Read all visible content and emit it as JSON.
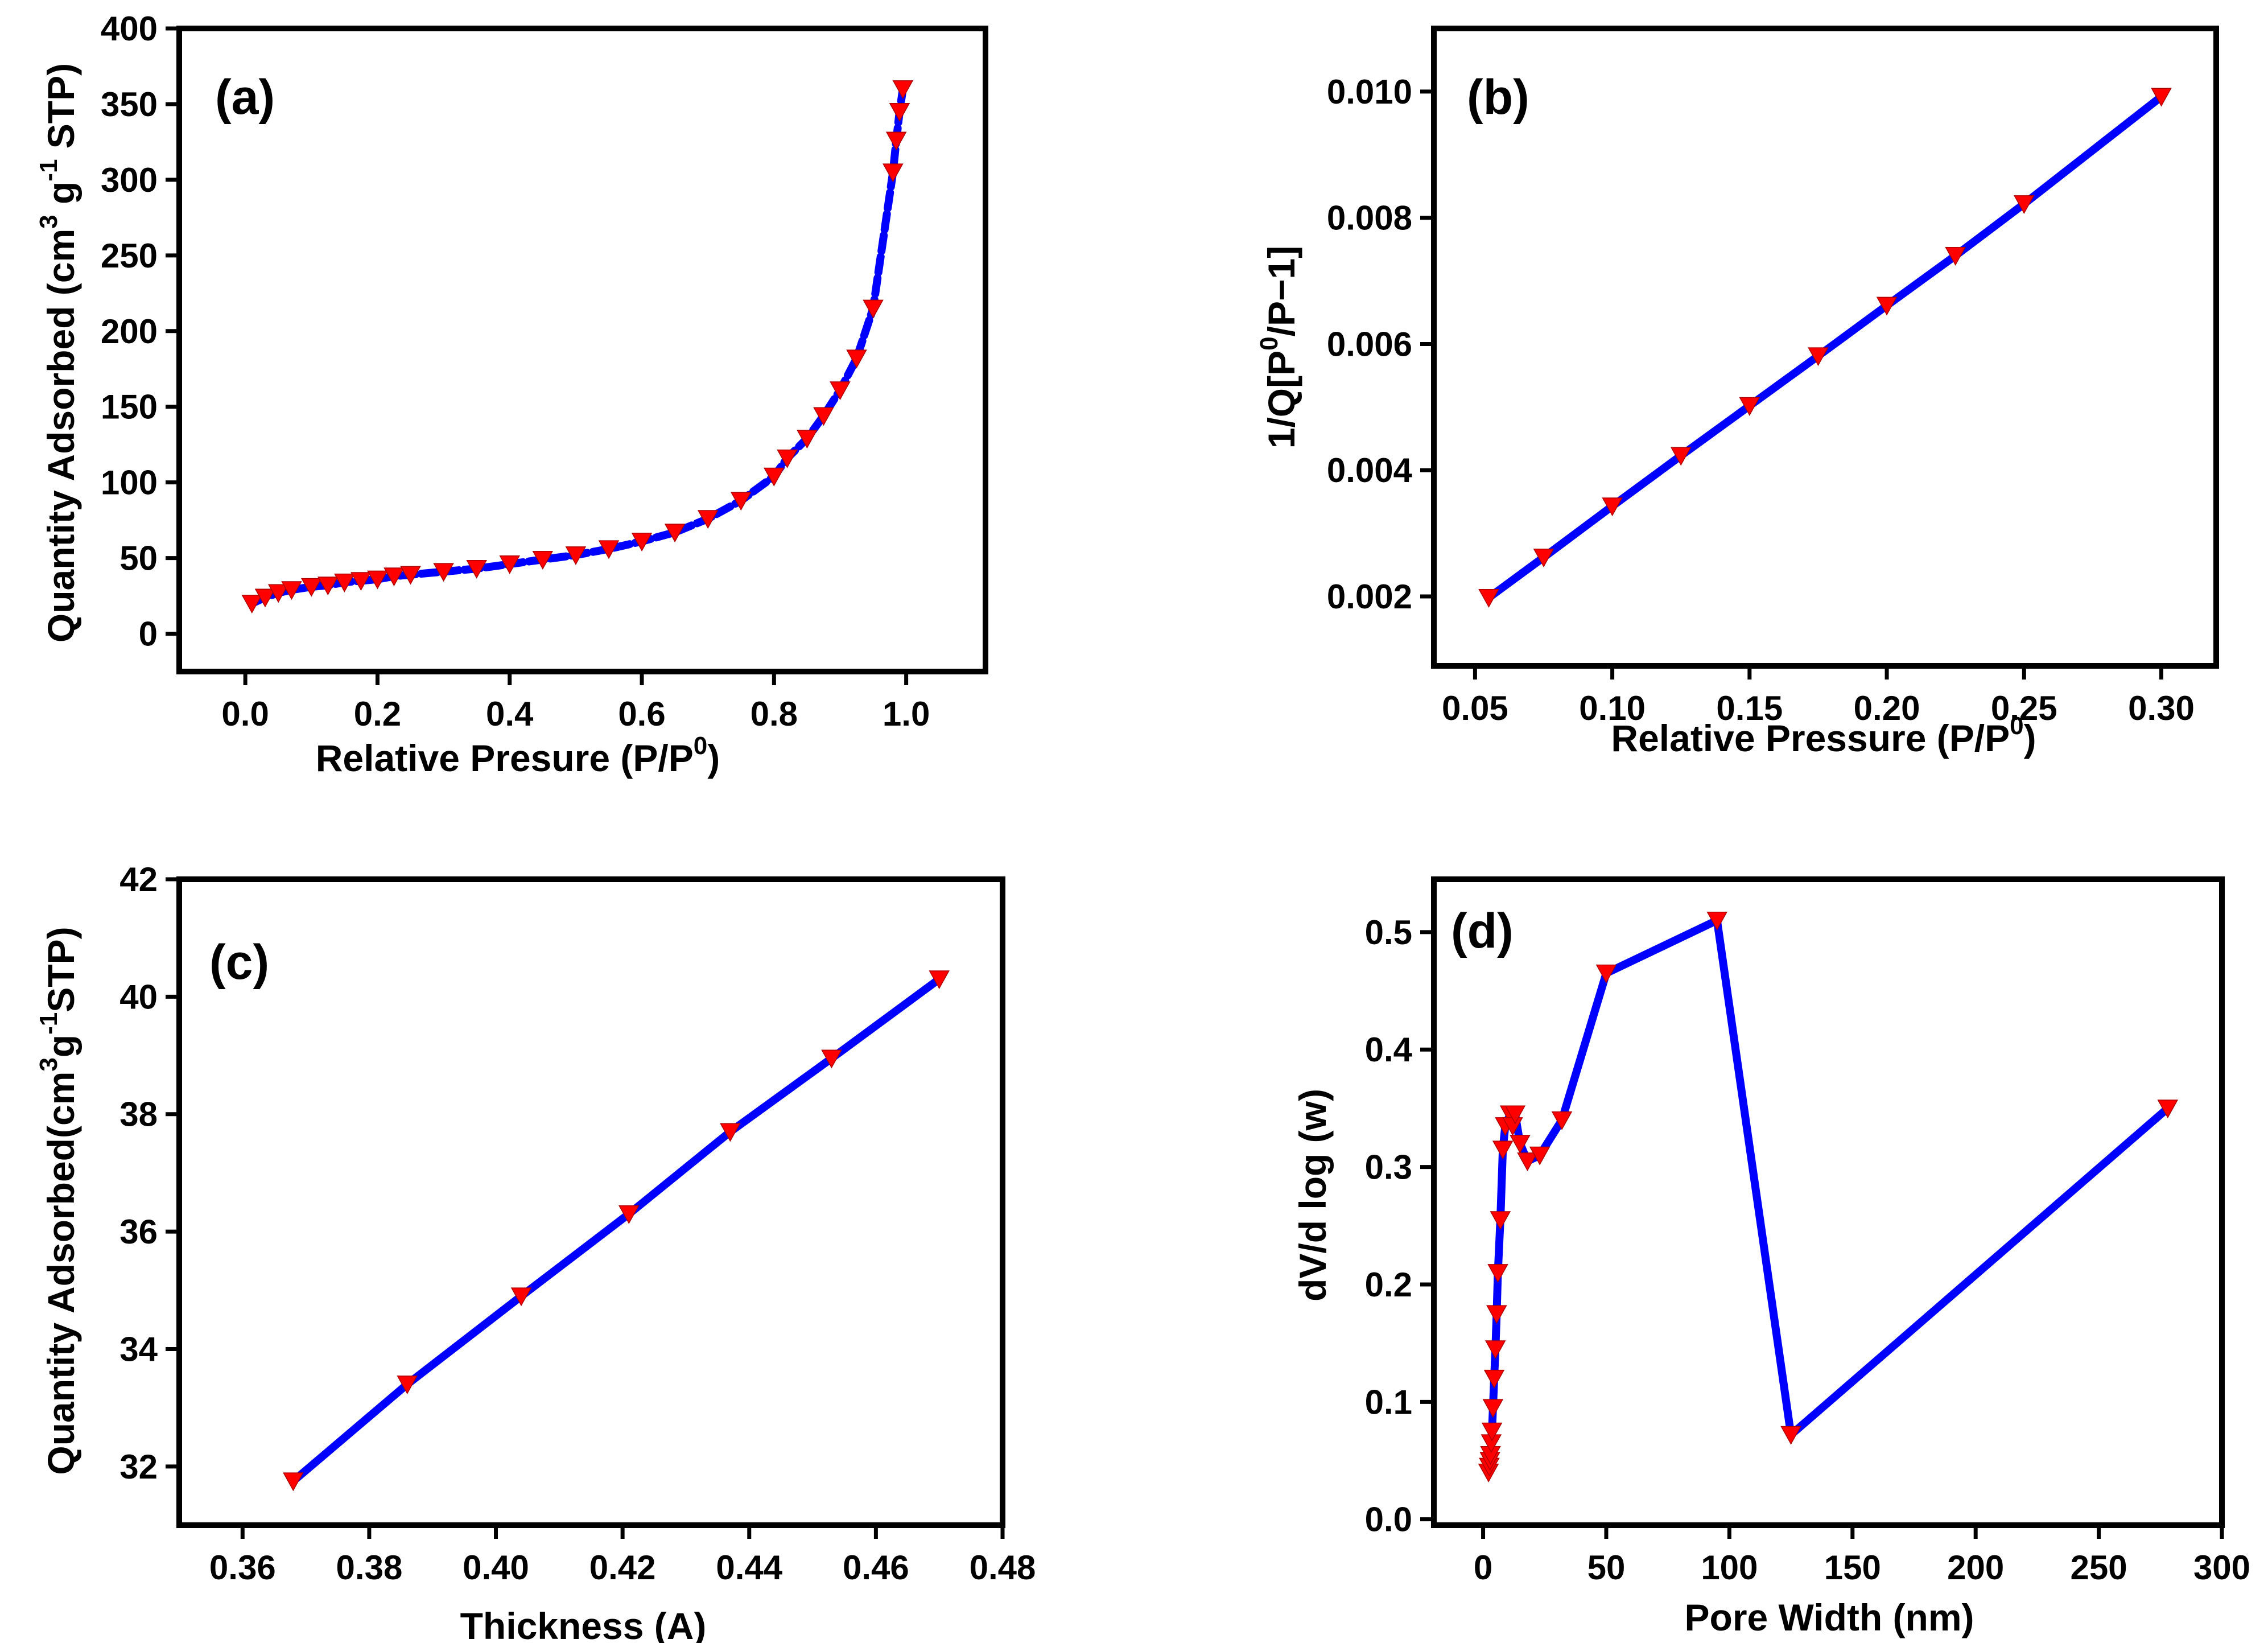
{
  "colors": {
    "line": "#0000ff",
    "marker": "#ff0000",
    "axes": "#000000",
    "background": "#ffffff"
  },
  "marker_shape": "down-triangle",
  "chart_data": [
    {
      "id": "a",
      "panel_label": "(a)",
      "type": "line",
      "dashed": true,
      "xlabel": {
        "main": "Relative Presure (P/P",
        "sup": "0",
        "tail": ")"
      },
      "ylabel": {
        "parts": [
          [
            "Quantity Adsorbed (cm",
            false
          ],
          [
            "3",
            true
          ],
          [
            " g",
            false
          ],
          [
            "-1",
            true
          ],
          [
            " STP)",
            false
          ]
        ]
      },
      "xlim": [
        -0.1,
        1.12
      ],
      "ylim": [
        -25,
        400
      ],
      "xticks": [
        0.0,
        0.2,
        0.4,
        0.6,
        0.8,
        1.0
      ],
      "xtick_labels": [
        "0.0",
        "0.2",
        "0.4",
        "0.6",
        "0.8",
        "1.0"
      ],
      "yticks": [
        0,
        50,
        100,
        150,
        200,
        250,
        300,
        350,
        400
      ],
      "ytick_labels": [
        "0",
        "50",
        "100",
        "150",
        "200",
        "250",
        "300",
        "350",
        "400"
      ],
      "x": [
        0.01,
        0.03,
        0.05,
        0.07,
        0.1,
        0.125,
        0.15,
        0.175,
        0.2,
        0.225,
        0.25,
        0.3,
        0.35,
        0.4,
        0.45,
        0.5,
        0.55,
        0.6,
        0.65,
        0.7,
        0.75,
        0.8,
        0.82,
        0.85,
        0.875,
        0.9,
        0.925,
        0.95,
        0.98,
        0.985,
        0.99,
        0.995
      ],
      "y": [
        20,
        24,
        27,
        29,
        31,
        32,
        34,
        35,
        36,
        38,
        39,
        41,
        43,
        46,
        49,
        52,
        56,
        61,
        67,
        76,
        88,
        104,
        116,
        129,
        144,
        161,
        182,
        215,
        305,
        326,
        345,
        360
      ]
    },
    {
      "id": "b",
      "panel_label": "(b)",
      "type": "line",
      "dashed": false,
      "xlabel": {
        "main": "Relative Pressure (P/P",
        "sup": "0",
        "tail": ")"
      },
      "ylabel": {
        "parts": [
          [
            "1/Q[P",
            false
          ],
          [
            "0",
            true
          ],
          [
            "/P−1]",
            false
          ]
        ]
      },
      "xlim": [
        0.035,
        0.32
      ],
      "ylim": [
        0.0009,
        0.011
      ],
      "xticks": [
        0.05,
        0.1,
        0.15,
        0.2,
        0.25,
        0.3
      ],
      "xtick_labels": [
        "0.05",
        "0.10",
        "0.15",
        "0.20",
        "0.25",
        "0.30"
      ],
      "yticks": [
        0.002,
        0.004,
        0.006,
        0.008,
        0.01
      ],
      "ytick_labels": [
        "0.002",
        "0.004",
        "0.006",
        "0.008",
        "0.010"
      ],
      "x": [
        0.055,
        0.075,
        0.1,
        0.125,
        0.15,
        0.175,
        0.2,
        0.225,
        0.25,
        0.3
      ],
      "y": [
        0.00198,
        0.00262,
        0.00343,
        0.00423,
        0.00502,
        0.00581,
        0.00661,
        0.0074,
        0.00822,
        0.00992
      ]
    },
    {
      "id": "c",
      "panel_label": "(c)",
      "type": "line",
      "dashed": false,
      "xlabel": {
        "main": "Thickness (A)",
        "sup": "",
        "tail": ""
      },
      "ylabel": {
        "parts": [
          [
            "Quantity Adsorbed(cm",
            false
          ],
          [
            "3",
            true
          ],
          [
            "g",
            false
          ],
          [
            "-1",
            true
          ],
          [
            "STP)",
            false
          ]
        ]
      },
      "xlim": [
        0.35,
        0.48
      ],
      "ylim": [
        31,
        42
      ],
      "xticks": [
        0.36,
        0.38,
        0.4,
        0.42,
        0.44,
        0.46,
        0.48
      ],
      "xtick_labels": [
        "0.36",
        "0.38",
        "0.40",
        "0.42",
        "0.44",
        "0.46",
        "0.48"
      ],
      "yticks": [
        32,
        34,
        36,
        38,
        40,
        42
      ],
      "ytick_labels": [
        "32",
        "34",
        "36",
        "38",
        "40",
        "42"
      ],
      "x": [
        0.368,
        0.386,
        0.404,
        0.421,
        0.437,
        0.453,
        0.47
      ],
      "y": [
        31.75,
        33.4,
        34.9,
        36.3,
        37.7,
        38.95,
        40.3
      ]
    },
    {
      "id": "d",
      "panel_label": "(d)",
      "type": "line",
      "dashed": false,
      "xlabel": {
        "main": "Pore Width (nm)",
        "sup": "",
        "tail": ""
      },
      "ylabel": {
        "parts": [
          [
            "dV/d log (w)",
            false
          ]
        ]
      },
      "xlim": [
        -20,
        300
      ],
      "ylim": [
        -0.005,
        0.545
      ],
      "xticks": [
        0,
        50,
        100,
        150,
        200,
        250,
        300
      ],
      "xtick_labels": [
        "0",
        "50",
        "100",
        "150",
        "200",
        "250",
        "300"
      ],
      "yticks": [
        0.0,
        0.1,
        0.2,
        0.3,
        0.4,
        0.5
      ],
      "ytick_labels": [
        "0.0",
        "0.1",
        "0.2",
        "0.3",
        "0.4",
        "0.5"
      ],
      "x": [
        2.2,
        2.5,
        2.8,
        3.0,
        3.3,
        3.6,
        4.0,
        4.5,
        5,
        5.5,
        6,
        7,
        8,
        9,
        11,
        12,
        13,
        15,
        18,
        23,
        32,
        50,
        95,
        125,
        278
      ],
      "y": [
        0.04,
        0.045,
        0.05,
        0.055,
        0.065,
        0.075,
        0.095,
        0.12,
        0.145,
        0.175,
        0.21,
        0.255,
        0.315,
        0.335,
        0.345,
        0.335,
        0.345,
        0.32,
        0.305,
        0.31,
        0.34,
        0.465,
        0.51,
        0.072,
        0.35
      ]
    }
  ]
}
